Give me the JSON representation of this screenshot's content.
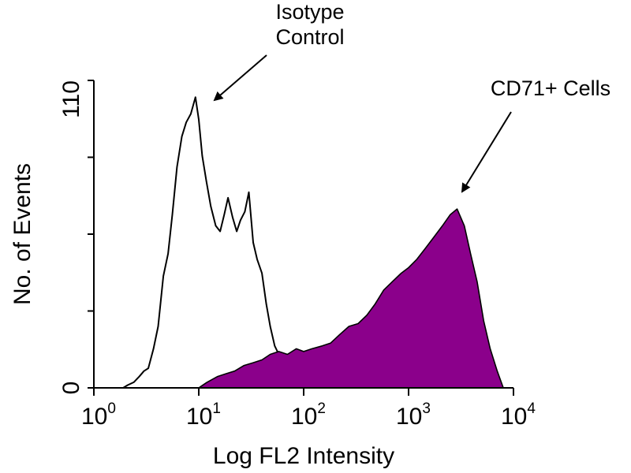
{
  "chart_data": {
    "type": "area",
    "title": "",
    "xlabel": "Log FL2 Intensity",
    "ylabel": "No. of Events",
    "x_scale": "log",
    "xlim": [
      1,
      10000
    ],
    "ylim": [
      0,
      110
    ],
    "x_ticks": [
      {
        "base": "10",
        "exp": "0"
      },
      {
        "base": "10",
        "exp": "1"
      },
      {
        "base": "10",
        "exp": "2"
      },
      {
        "base": "10",
        "exp": "3"
      },
      {
        "base": "10",
        "exp": "4"
      }
    ],
    "y_ticks": [
      "0",
      "110"
    ],
    "grid": false,
    "colors": {
      "filled": "#8b008b",
      "outline": "#000000"
    },
    "annotations": [
      {
        "lines": [
          "Isotype",
          "Control"
        ],
        "target": "isotype"
      },
      {
        "lines": [
          "CD71+ Cells"
        ],
        "target": "cd71"
      }
    ],
    "series": [
      {
        "key": "isotype",
        "style": "outline",
        "x": [
          1.9,
          2.1,
          2.4,
          2.7,
          3.0,
          3.3,
          3.7,
          4.1,
          4.6,
          5.1,
          5.6,
          6.2,
          6.9,
          7.6,
          8.4,
          9.3,
          10.0,
          10.8,
          11.8,
          13.0,
          14.5,
          16.0,
          17.5,
          19.0,
          21.0,
          23.0,
          25.0,
          27.5,
          30.0,
          33.0,
          36.0,
          40.0,
          44.0,
          48.0,
          53.0,
          58.0,
          64.0,
          70.0,
          77.0,
          85.0,
          93.0,
          100.0
        ],
        "values": [
          0,
          1,
          2,
          4,
          6,
          7,
          14,
          22,
          40,
          48,
          62,
          79,
          90,
          95,
          98,
          104,
          96,
          83,
          74,
          65,
          58,
          56,
          62,
          68,
          61,
          56,
          60,
          63,
          70,
          52,
          46,
          41,
          30,
          22,
          15,
          12,
          10,
          8,
          6,
          3,
          1,
          0
        ]
      },
      {
        "key": "cd71",
        "style": "filled",
        "x": [
          10,
          12,
          15,
          18,
          22,
          27,
          33,
          40,
          48,
          58,
          70,
          85,
          100,
          120,
          150,
          180,
          220,
          270,
          330,
          400,
          480,
          580,
          700,
          850,
          1000,
          1200,
          1450,
          1750,
          2100,
          2500,
          2900,
          3400,
          3900,
          4500,
          5200,
          6000,
          7000,
          8000
        ],
        "values": [
          0,
          2,
          4,
          5,
          6,
          8,
          9,
          10,
          12,
          13,
          12,
          14,
          13,
          14,
          15,
          16,
          19,
          22,
          23,
          26,
          30,
          35,
          38,
          41,
          43,
          46,
          50,
          54,
          58,
          62,
          64,
          58,
          48,
          38,
          24,
          14,
          6,
          0
        ]
      }
    ]
  }
}
